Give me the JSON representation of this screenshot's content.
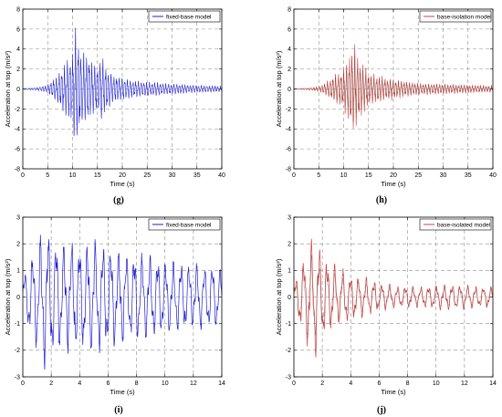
{
  "chart_data": [
    {
      "panel": "(g)",
      "type": "line",
      "xlabel": "Time (s)",
      "ylabel": "Acceleration at top (m/s²)",
      "xlim": [
        0,
        40
      ],
      "ylim": [
        -8,
        8
      ],
      "xticks": [
        "0",
        "5",
        "10",
        "15",
        "20",
        "25",
        "30",
        "35",
        "40"
      ],
      "yticks": [
        "8",
        "6",
        "4",
        "2",
        "0",
        "-2",
        "-4",
        "-6",
        "-8"
      ],
      "grid": true,
      "legend_position": "top-right",
      "series": [
        {
          "name": "fixed-base model",
          "color": "#1f1fd0",
          "x": [
            0,
            3,
            5,
            6,
            7,
            8,
            9,
            10,
            10.5,
            11,
            11.5,
            12,
            13,
            14,
            15,
            16,
            17,
            18,
            20,
            22,
            25,
            30,
            35,
            40
          ],
          "envelope": [
            0.05,
            0.15,
            0.4,
            0.9,
            1.4,
            2.2,
            2.8,
            3.4,
            6.2,
            5.0,
            4.2,
            3.6,
            3.3,
            2.6,
            2.2,
            3.0,
            2.0,
            1.4,
            1.1,
            0.9,
            0.7,
            0.5,
            0.35,
            0.3
          ]
        }
      ]
    },
    {
      "panel": "(h)",
      "type": "line",
      "xlabel": "Time (s)",
      "ylabel": "Acceleration at top (m/s²)",
      "xlim": [
        0,
        40
      ],
      "ylim": [
        -8,
        8
      ],
      "xticks": [
        "0",
        "5",
        "10",
        "15",
        "20",
        "25",
        "30",
        "35",
        "40"
      ],
      "yticks": [
        "8",
        "6",
        "4",
        "2",
        "0",
        "-2",
        "-4",
        "-6",
        "-8"
      ],
      "grid": true,
      "legend_position": "top-right",
      "series": [
        {
          "name": "base-isolation model",
          "color": "#d04040",
          "x": [
            0,
            3,
            5,
            6,
            7,
            8,
            9,
            10,
            11,
            12,
            12.5,
            13,
            14,
            15,
            16,
            18,
            20,
            22,
            25,
            30,
            35,
            40
          ],
          "envelope": [
            0.03,
            0.1,
            0.25,
            0.5,
            0.9,
            1.3,
            1.6,
            2.0,
            3.0,
            4.8,
            3.8,
            3.2,
            2.4,
            1.6,
            1.5,
            1.2,
            1.0,
            0.8,
            0.6,
            0.5,
            0.4,
            0.35
          ]
        }
      ]
    },
    {
      "panel": "(i)",
      "type": "line",
      "xlabel": "Time (s)",
      "ylabel": "Acceleration at top (m/s²)",
      "xlim": [
        0,
        14
      ],
      "ylim": [
        -3,
        3
      ],
      "xticks": [
        "0",
        "2",
        "4",
        "6",
        "8",
        "10",
        "12",
        "14"
      ],
      "yticks": [
        "3",
        "2",
        "1",
        "0",
        "-1",
        "-2",
        "-3"
      ],
      "grid": true,
      "legend_position": "top-right",
      "series": [
        {
          "name": "fixed-base model",
          "color": "#1f1fd0",
          "x": [
            0,
            0.5,
            1,
            1.5,
            2,
            3,
            4,
            5,
            6,
            7,
            8,
            9,
            10,
            11,
            12,
            13,
            14
          ],
          "envelope": [
            0.8,
            1.4,
            2.0,
            2.6,
            2.3,
            2.0,
            2.0,
            2.1,
            1.9,
            1.7,
            1.6,
            1.5,
            1.4,
            1.3,
            1.2,
            1.2,
            1.1
          ]
        }
      ]
    },
    {
      "panel": "(j)",
      "type": "line",
      "xlabel": "Time (s)",
      "ylabel": "Acceleration at top (m/s²)",
      "xlim": [
        0,
        14
      ],
      "ylim": [
        -3,
        3
      ],
      "xticks": [
        "0",
        "2",
        "4",
        "6",
        "8",
        "10",
        "12",
        "14"
      ],
      "yticks": [
        "3",
        "2",
        "1",
        "0",
        "-1",
        "-2",
        "-3"
      ],
      "grid": true,
      "legend_position": "top-right",
      "series": [
        {
          "name": "base-isolated model",
          "color": "#d04040",
          "x": [
            0,
            0.5,
            1,
            1.5,
            2,
            3,
            4,
            5,
            6,
            7,
            8,
            9,
            10,
            11,
            12,
            13,
            14
          ],
          "envelope": [
            0.5,
            1.3,
            1.9,
            2.2,
            1.6,
            1.1,
            0.9,
            0.7,
            0.55,
            0.45,
            0.4,
            0.4,
            0.45,
            0.5,
            0.45,
            0.4,
            0.4
          ]
        }
      ]
    }
  ]
}
